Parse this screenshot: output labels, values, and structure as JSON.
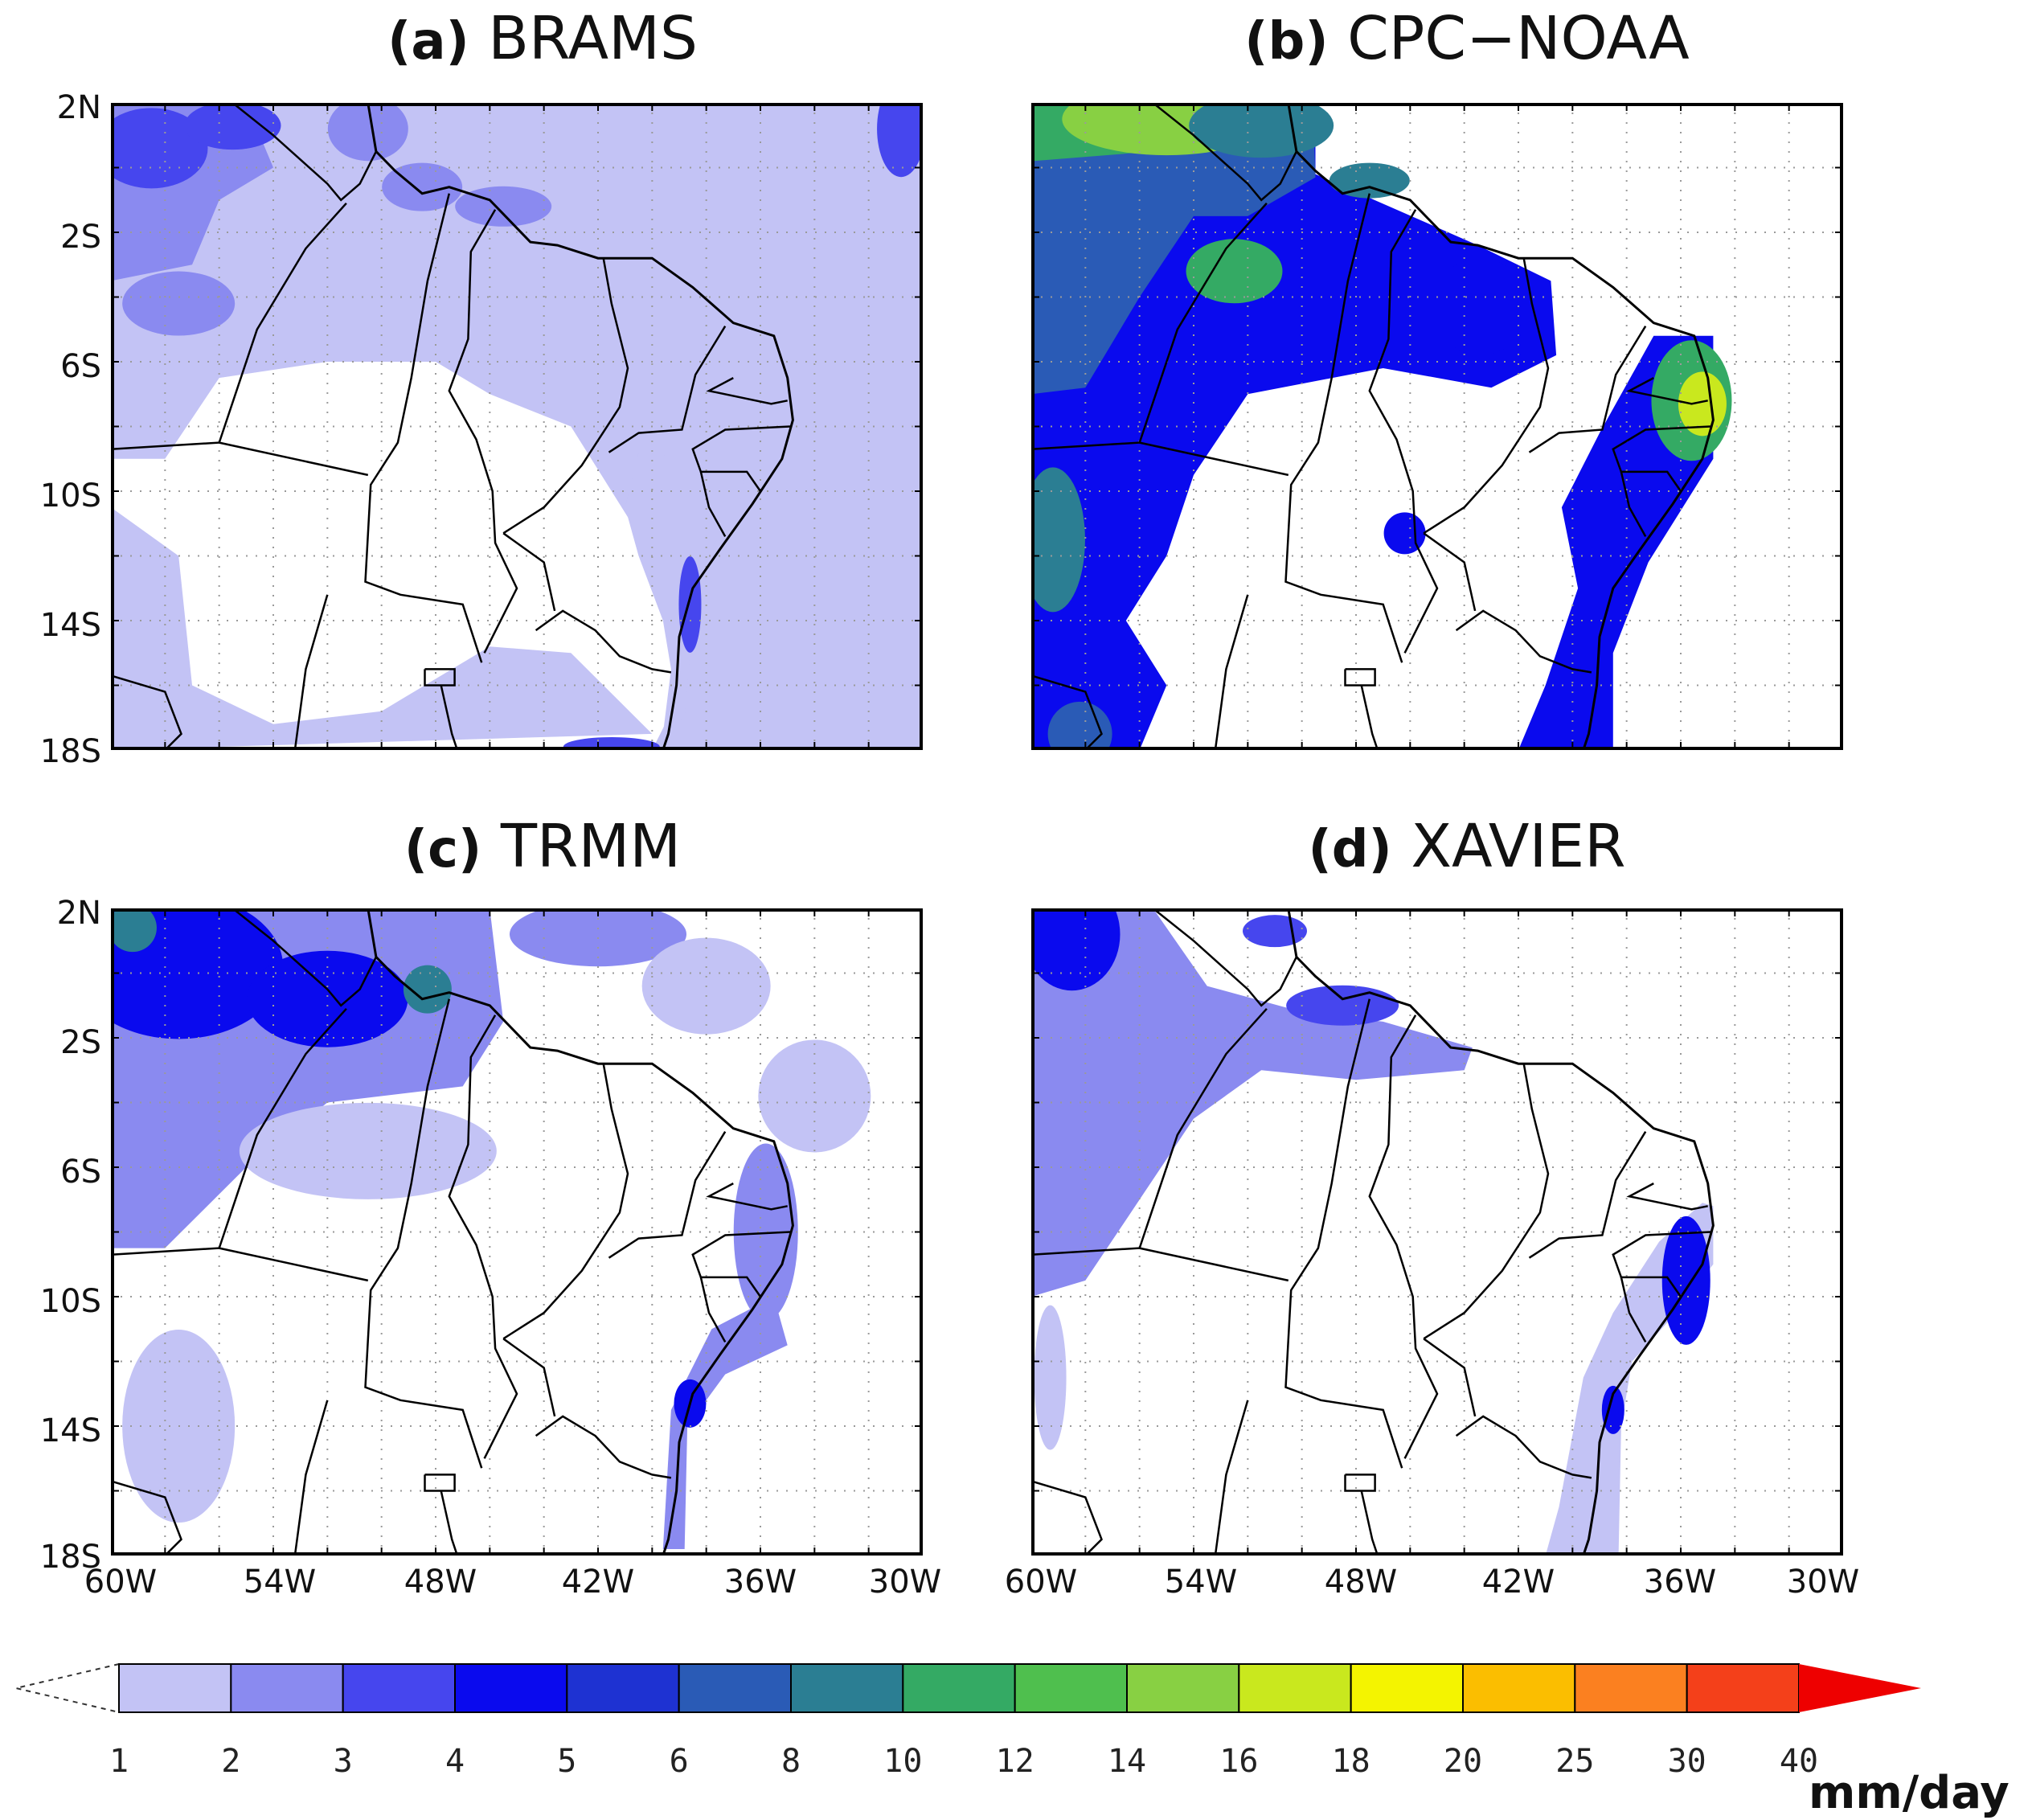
{
  "panels": [
    {
      "tag": "(a)",
      "name": "BRAMS",
      "field": "brams"
    },
    {
      "tag": "(b)",
      "name": "CPC−NOAA",
      "field": "cpc"
    },
    {
      "tag": "(c)",
      "name": "TRMM",
      "field": "trmm"
    },
    {
      "tag": "(d)",
      "name": "XAVIER",
      "field": "xavier"
    }
  ],
  "axes": {
    "lat_labels": [
      "2N",
      "2S",
      "6S",
      "10S",
      "14S",
      "18S"
    ],
    "lon_labels": [
      "60W",
      "54W",
      "48W",
      "42W",
      "36W",
      "30W"
    ]
  },
  "colorbar": {
    "levels": [
      "1",
      "2",
      "3",
      "4",
      "5",
      "6",
      "8",
      "10",
      "12",
      "14",
      "16",
      "18",
      "20",
      "25",
      "30",
      "40"
    ],
    "colors": [
      "#c3c3f5",
      "#8a8af0",
      "#4646ee",
      "#0a0aee",
      "#1e32d2",
      "#2a5bb6",
      "#2b7e93",
      "#34aa64",
      "#4fbf4e",
      "#88d043",
      "#c9e81e",
      "#f4f400",
      "#fbbe00",
      "#fb8020",
      "#f4401a",
      "#ee0000"
    ],
    "unit": "mm/day"
  }
}
